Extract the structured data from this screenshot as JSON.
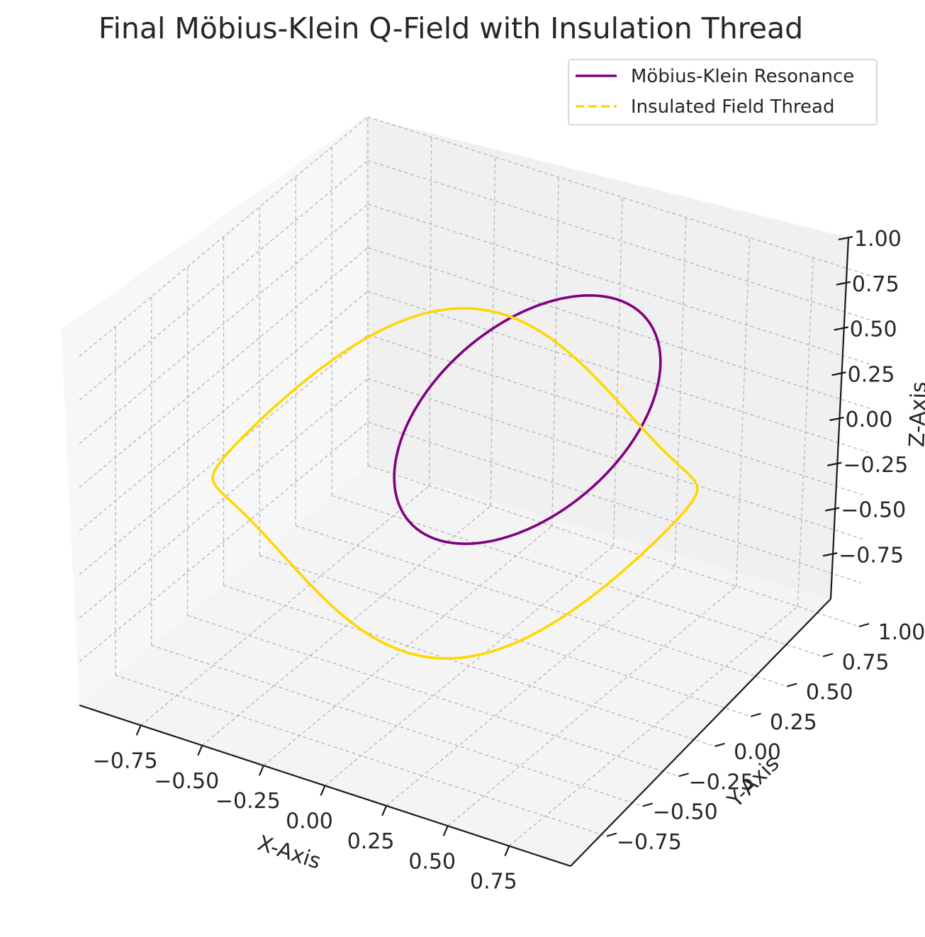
{
  "chart_data": {
    "type": "line",
    "projection": "3d",
    "title": "Final Möbius-Klein Q-Field with Insulation Thread",
    "xlabel": "X-Axis",
    "ylabel": "Y-Axis",
    "zlabel": "Z-Axis",
    "x_ticks": [
      "−0.75",
      "−0.50",
      "−0.25",
      "0.00",
      "0.25",
      "0.50",
      "0.75"
    ],
    "y_ticks": [
      "−0.75",
      "−0.50",
      "−0.25",
      "0.00",
      "0.25",
      "0.50",
      "0.75",
      "1.00"
    ],
    "z_ticks": [
      "−0.75",
      "−0.50",
      "−0.25",
      "0.00",
      "0.25",
      "0.50",
      "0.75",
      "1.00"
    ],
    "xlim": [
      -1.0,
      1.0
    ],
    "ylim": [
      -1.0,
      1.0
    ],
    "zlim": [
      -1.0,
      1.0
    ],
    "grid": true,
    "legend_position": "top-right",
    "series": [
      {
        "name": "Möbius-Klein Resonance",
        "color": "#800080",
        "style": "solid",
        "description": "closed tilted ellipse",
        "x": [
          0.0,
          0.5,
          0.87,
          1.0,
          0.87,
          0.5,
          0.0,
          -0.5,
          -0.87,
          -1.0,
          -0.87,
          -0.5,
          0.0
        ],
        "y": [
          1.0,
          0.87,
          0.5,
          0.0,
          -0.5,
          -0.87,
          -1.0,
          -0.87,
          -0.5,
          0.0,
          0.5,
          0.87,
          1.0
        ],
        "z": [
          0.0,
          0.25,
          0.43,
          0.5,
          0.43,
          0.25,
          0.0,
          -0.25,
          -0.43,
          -0.5,
          -0.43,
          -0.25,
          0.0
        ]
      },
      {
        "name": "Insulated Field Thread",
        "color": "#ffd700",
        "style": "dashed",
        "description": "closed saddle-shaped loop"
      }
    ]
  }
}
